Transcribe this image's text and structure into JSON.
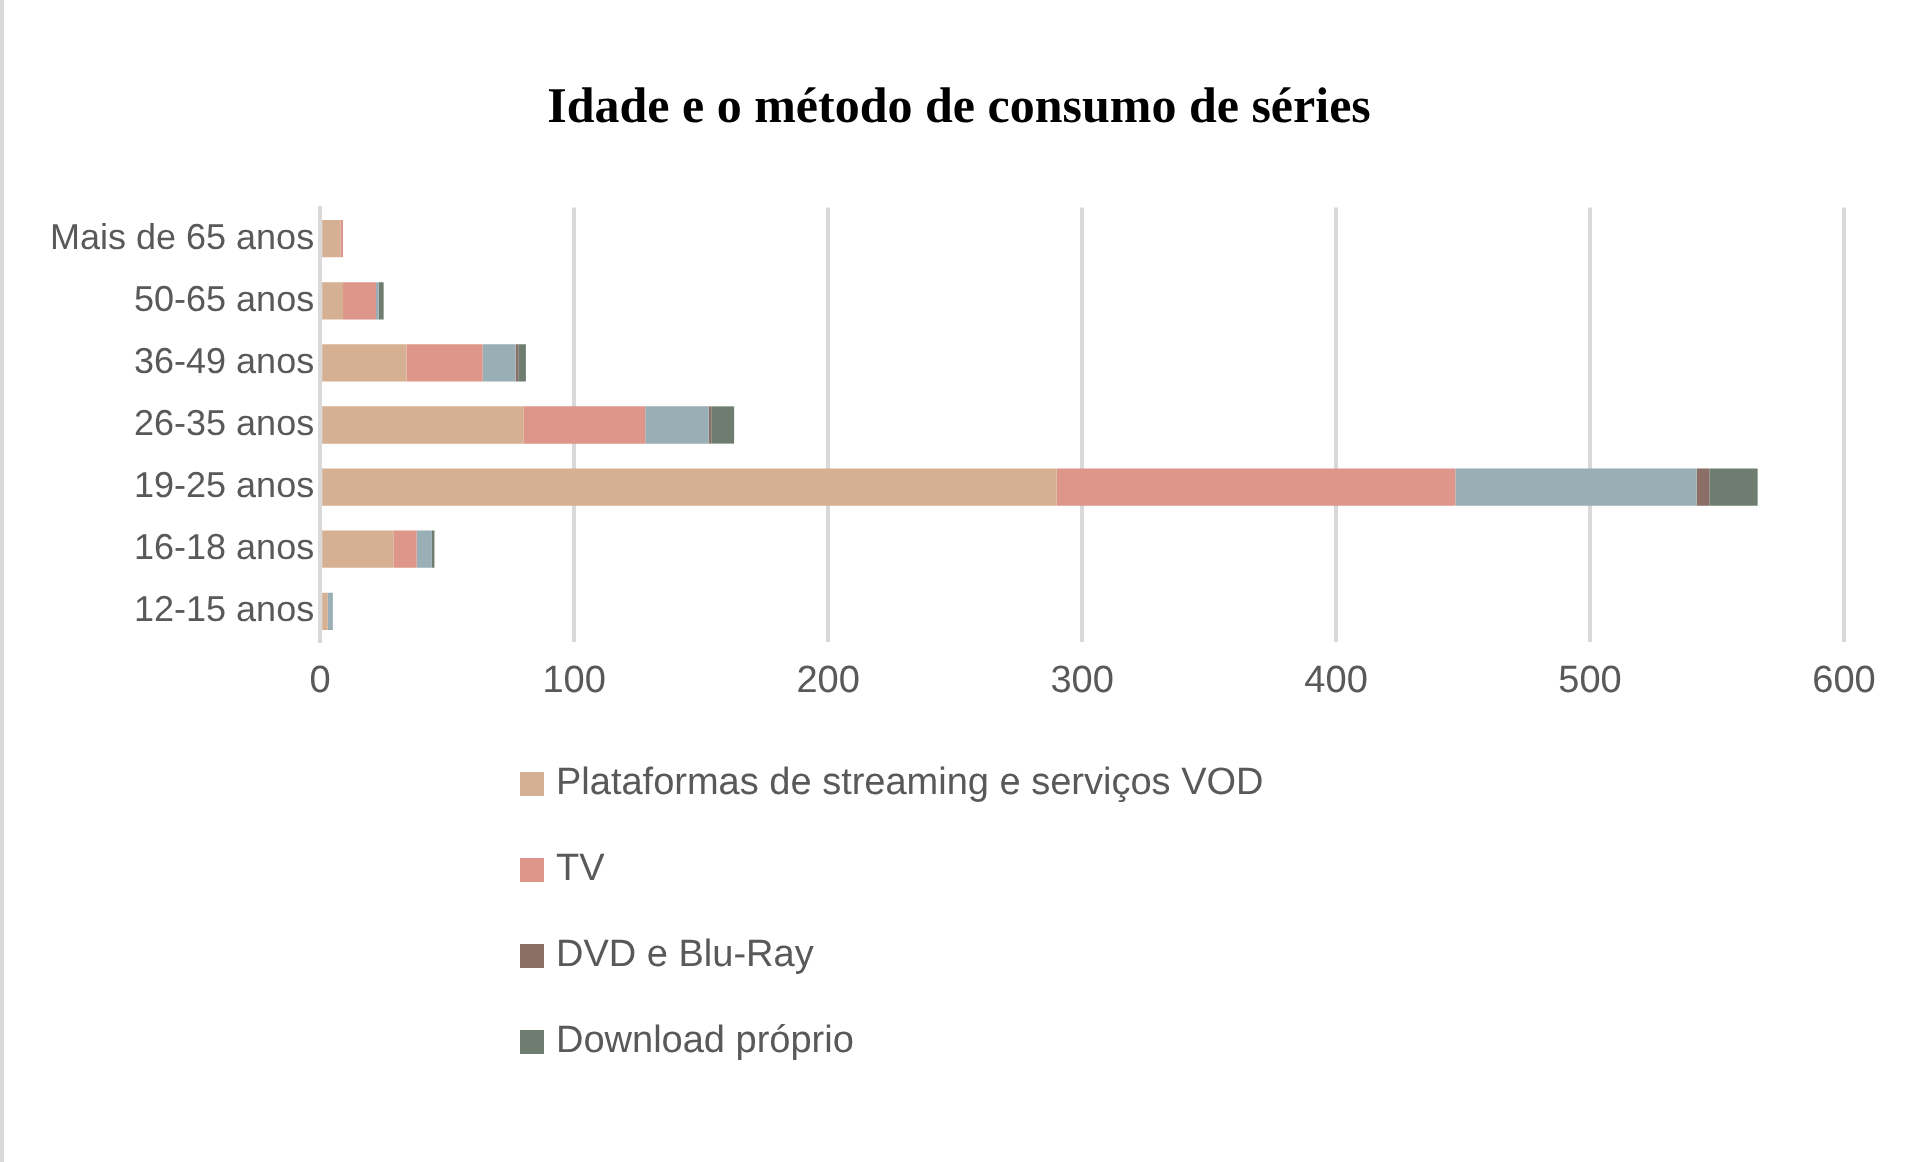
{
  "chart_data": {
    "type": "bar",
    "title": "Idade e o método de consumo de séries",
    "orientation": "horizontal",
    "stacked": true,
    "categories": [
      "Mais de 65 anos",
      "50-65 anos",
      "36-49 anos",
      "26-35 anos",
      "19-25 anos",
      "16-18 anos",
      "12-15 anos"
    ],
    "series": [
      {
        "name": "Plataformas de streaming e serviços VOD",
        "color": "#d6b092",
        "values": [
          8,
          9,
          34,
          80,
          290,
          29,
          3
        ]
      },
      {
        "name": "TV",
        "color": "#de968a",
        "values": [
          1,
          13,
          30,
          48,
          157,
          9,
          0
        ]
      },
      {
        "color": "#9aaeb6",
        "values": [
          0,
          1,
          13,
          25,
          95,
          6,
          2
        ]
      },
      {
        "name": "DVD e Blu-Ray",
        "color": "#8b6f66",
        "values": [
          0,
          0,
          1,
          1,
          5,
          0,
          0
        ]
      },
      {
        "name": "Download próprio",
        "color": "#6e7d70",
        "values": [
          0,
          2,
          3,
          9,
          19,
          1,
          0
        ]
      }
    ],
    "xlim": [
      0,
      600
    ],
    "xticks": [
      0,
      100,
      200,
      300,
      400,
      500,
      600
    ],
    "grid": "x",
    "legend": "bottom"
  }
}
